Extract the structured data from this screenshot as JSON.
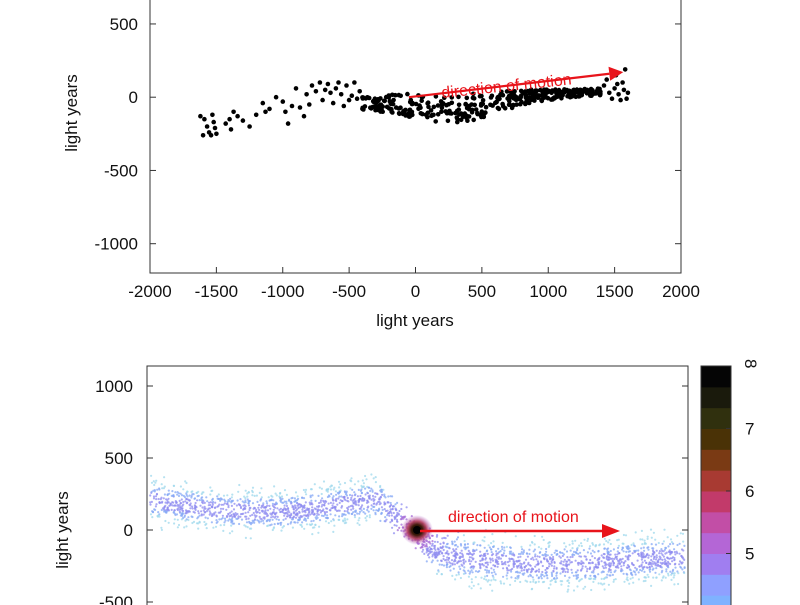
{
  "chart_data": [
    {
      "type": "scatter",
      "title": "",
      "xlabel": "light years",
      "ylabel": "light years",
      "xlim": [
        -2000,
        2000
      ],
      "ylim": [
        -1200,
        800
      ],
      "xticks": [
        -2000,
        -1500,
        -1000,
        -500,
        0,
        500,
        1000,
        1500,
        2000
      ],
      "yticks": [
        -1000,
        -500,
        0,
        500
      ],
      "grid": false,
      "point_color": "#000000",
      "annotation": {
        "text": "direction of motion",
        "color": "#e8141b",
        "arrow_from": [
          -50,
          0
        ],
        "arrow_to": [
          1460,
          160
        ]
      },
      "series": [
        {
          "points": [
            [
              -1620,
              -130
            ],
            [
              -1600,
              -260
            ],
            [
              -1590,
              -150
            ],
            [
              -1570,
              -200
            ],
            [
              -1555,
              -240
            ],
            [
              -1540,
              -260
            ],
            [
              -1530,
              -120
            ],
            [
              -1520,
              -170
            ],
            [
              -1510,
              -210
            ],
            [
              -1500,
              -250
            ],
            [
              -1430,
              -180
            ],
            [
              -1400,
              -150
            ],
            [
              -1390,
              -220
            ],
            [
              -1370,
              -100
            ],
            [
              -1340,
              -130
            ],
            [
              -1300,
              -160
            ],
            [
              -1250,
              -200
            ],
            [
              -1200,
              -120
            ],
            [
              -1150,
              -40
            ],
            [
              -1130,
              -100
            ],
            [
              -1100,
              -80
            ],
            [
              -1050,
              0
            ],
            [
              -1000,
              -30
            ],
            [
              -980,
              -100
            ],
            [
              -960,
              -180
            ],
            [
              -930,
              -60
            ],
            [
              -900,
              60
            ],
            [
              -870,
              -70
            ],
            [
              -840,
              -130
            ],
            [
              -820,
              20
            ],
            [
              -800,
              -50
            ],
            [
              -780,
              80
            ],
            [
              -750,
              40
            ],
            [
              -720,
              100
            ],
            [
              -700,
              -20
            ],
            [
              -680,
              50
            ],
            [
              -660,
              90
            ],
            [
              -640,
              30
            ],
            [
              -620,
              -40
            ],
            [
              -600,
              60
            ],
            [
              -580,
              100
            ],
            [
              -560,
              20
            ],
            [
              -540,
              -60
            ],
            [
              -520,
              80
            ],
            [
              -500,
              -20
            ],
            [
              -480,
              10
            ],
            [
              -460,
              100
            ],
            [
              -440,
              -10
            ],
            [
              -420,
              40
            ],
            [
              -400,
              -80
            ],
            [
              1420,
              80
            ],
            [
              1440,
              120
            ],
            [
              1460,
              30
            ],
            [
              1480,
              -10
            ],
            [
              1500,
              60
            ],
            [
              1510,
              150
            ],
            [
              1520,
              90
            ],
            [
              1530,
              20
            ],
            [
              1545,
              -20
            ],
            [
              1560,
              100
            ],
            [
              1570,
              50
            ],
            [
              1580,
              190
            ],
            [
              1590,
              -10
            ],
            [
              1600,
              30
            ]
          ]
        }
      ]
    },
    {
      "type": "heatmap",
      "title": "",
      "xlabel": "",
      "ylabel": "light years",
      "ylim": [
        -1200,
        1200
      ],
      "yticks": [
        -500,
        0,
        500,
        1000
      ],
      "colorbar": {
        "ticks": [
          5,
          6,
          7,
          8
        ],
        "range": [
          4,
          8
        ],
        "colors": [
          "#7fb2ff",
          "#8fa0ff",
          "#a07ef0",
          "#b466d6",
          "#c24ea6",
          "#c23a6a",
          "#a83a32",
          "#7a3a14",
          "#4a3206",
          "#30300e",
          "#1a1a0c",
          "#050505"
        ]
      },
      "annotation": {
        "text": "direction of motion",
        "color": "#e8141b"
      }
    }
  ]
}
